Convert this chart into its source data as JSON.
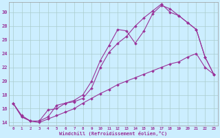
{
  "xlabel": "Windchill (Refroidissement éolien,°C)",
  "background_color": "#cceeff",
  "line_color": "#993399",
  "grid_color": "#aacccc",
  "xlim": [
    -0.5,
    23.5
  ],
  "ylim": [
    13.5,
    31.5
  ],
  "yticks": [
    14,
    16,
    18,
    20,
    22,
    24,
    26,
    28,
    30
  ],
  "xticks": [
    0,
    1,
    2,
    3,
    4,
    5,
    6,
    7,
    8,
    9,
    10,
    11,
    12,
    13,
    14,
    15,
    16,
    17,
    18,
    19,
    20,
    21,
    22,
    23
  ],
  "series1_x": [
    0,
    1,
    2,
    3,
    4,
    5,
    6,
    7,
    8,
    9,
    10,
    11,
    12,
    13,
    14,
    15,
    16,
    17,
    18,
    19,
    20,
    21,
    22,
    23
  ],
  "series1_y": [
    16.8,
    15.0,
    14.2,
    14.2,
    15.8,
    16.0,
    16.8,
    17.2,
    18.0,
    20.0,
    23.0,
    25.2,
    27.5,
    27.3,
    25.5,
    27.3,
    29.8,
    31.0,
    30.5,
    29.5,
    28.5,
    27.5,
    23.5,
    21.0
  ],
  "series2_x": [
    0,
    1,
    2,
    3,
    4,
    5,
    6,
    7,
    8,
    9,
    10,
    11,
    12,
    13,
    14,
    15,
    16,
    17,
    18,
    19,
    20,
    21,
    22,
    23
  ],
  "series2_y": [
    16.8,
    14.8,
    14.2,
    14.2,
    14.8,
    16.5,
    16.8,
    17.0,
    17.5,
    19.0,
    22.0,
    24.2,
    25.5,
    26.5,
    28.0,
    29.2,
    30.2,
    31.2,
    30.0,
    29.5,
    28.5,
    27.5,
    23.5,
    21.0
  ],
  "series3_x": [
    0,
    1,
    2,
    3,
    4,
    5,
    6,
    7,
    8,
    9,
    10,
    11,
    12,
    13,
    14,
    15,
    16,
    17,
    18,
    19,
    20,
    21,
    22,
    23
  ],
  "series3_y": [
    16.8,
    14.8,
    14.2,
    14.0,
    14.5,
    15.0,
    15.5,
    16.0,
    16.8,
    17.5,
    18.2,
    18.8,
    19.5,
    20.0,
    20.5,
    21.0,
    21.5,
    22.0,
    22.5,
    22.8,
    23.5,
    24.0,
    22.0,
    21.0
  ]
}
